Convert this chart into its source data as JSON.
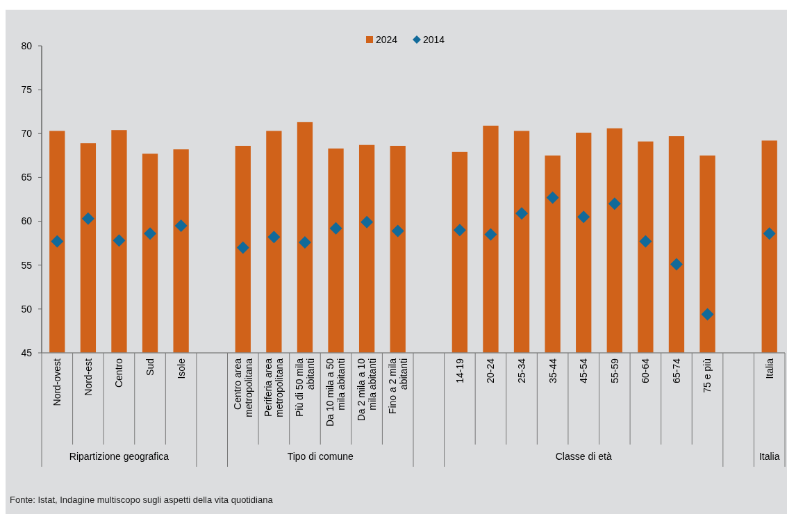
{
  "chart_data": {
    "type": "bar",
    "categories": [
      "Nord-ovest",
      "Nord-est",
      "Centro",
      "Sud",
      "Isole",
      null,
      "Centro area metropolitana",
      "Periferia area metropolitana",
      "Più di 50 mila abitanti",
      "Da 10 mila a 50 mila abitanti",
      "Da 2 mila a 10 mila abitanti",
      "Fino a 2 mila abitanti",
      null,
      "14-19",
      "20-24",
      "25-34",
      "35-44",
      "45-54",
      "55-59",
      "60-64",
      "65-74",
      "75 e più",
      null,
      "Italia"
    ],
    "series": [
      {
        "name": "2024",
        "color": "#d0621a",
        "values": [
          70.3,
          68.9,
          70.4,
          67.7,
          68.2,
          null,
          68.6,
          70.3,
          71.3,
          68.3,
          68.7,
          68.6,
          null,
          67.9,
          70.9,
          70.3,
          67.5,
          70.1,
          70.6,
          69.1,
          69.7,
          67.5,
          null,
          69.2
        ]
      },
      {
        "name": "2014",
        "type": "scatter",
        "marker": "diamond",
        "color": "#116a9a",
        "values": [
          57.7,
          60.3,
          57.8,
          58.6,
          59.5,
          null,
          57.0,
          58.2,
          57.6,
          59.2,
          59.9,
          58.9,
          null,
          59.0,
          58.5,
          60.9,
          62.7,
          60.5,
          62.0,
          57.7,
          55.1,
          49.4,
          null,
          58.6
        ]
      }
    ],
    "ylim": [
      45,
      80
    ],
    "yticks": [
      45,
      50,
      55,
      60,
      65,
      70,
      75,
      80
    ],
    "grid": false,
    "legend": "top",
    "annotations": [
      "Ripartizione geografica",
      "Tipo di comune",
      "Classe di età",
      "Italia",
      "Fonte: Istat, Indagine multiscopo sugli aspetti della vita quotidiana"
    ]
  }
}
